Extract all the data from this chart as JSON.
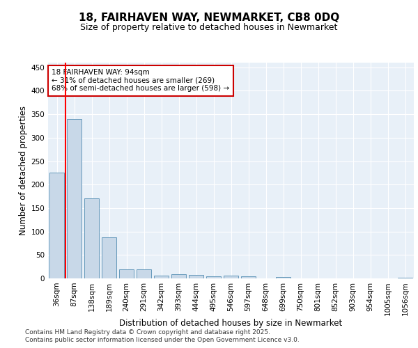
{
  "title1": "18, FAIRHAVEN WAY, NEWMARKET, CB8 0DQ",
  "title2": "Size of property relative to detached houses in Newmarket",
  "xlabel": "Distribution of detached houses by size in Newmarket",
  "ylabel": "Number of detached properties",
  "categories": [
    "36sqm",
    "87sqm",
    "138sqm",
    "189sqm",
    "240sqm",
    "291sqm",
    "342sqm",
    "393sqm",
    "444sqm",
    "495sqm",
    "546sqm",
    "597sqm",
    "648sqm",
    "699sqm",
    "750sqm",
    "801sqm",
    "852sqm",
    "903sqm",
    "954sqm",
    "1005sqm",
    "1056sqm"
  ],
  "values": [
    225,
    340,
    170,
    88,
    20,
    20,
    6,
    9,
    8,
    5,
    6,
    5,
    0,
    3,
    0,
    0,
    0,
    0,
    0,
    0,
    2
  ],
  "bar_color": "#c8d8e8",
  "bar_edge_color": "#6699bb",
  "red_line_x": 0.5,
  "annotation_text": "18 FAIRHAVEN WAY: 94sqm\n← 31% of detached houses are smaller (269)\n68% of semi-detached houses are larger (598) →",
  "annotation_box_color": "#ffffff",
  "annotation_box_edge": "#cc0000",
  "ylim": [
    0,
    460
  ],
  "yticks": [
    0,
    50,
    100,
    150,
    200,
    250,
    300,
    350,
    400,
    450
  ],
  "background_color": "#e8f0f8",
  "footer1": "Contains HM Land Registry data © Crown copyright and database right 2025.",
  "footer2": "Contains public sector information licensed under the Open Government Licence v3.0.",
  "title1_fontsize": 11,
  "title2_fontsize": 9,
  "xlabel_fontsize": 8.5,
  "ylabel_fontsize": 8.5,
  "tick_fontsize": 7.5,
  "annotation_fontsize": 7.5,
  "footer_fontsize": 6.5
}
